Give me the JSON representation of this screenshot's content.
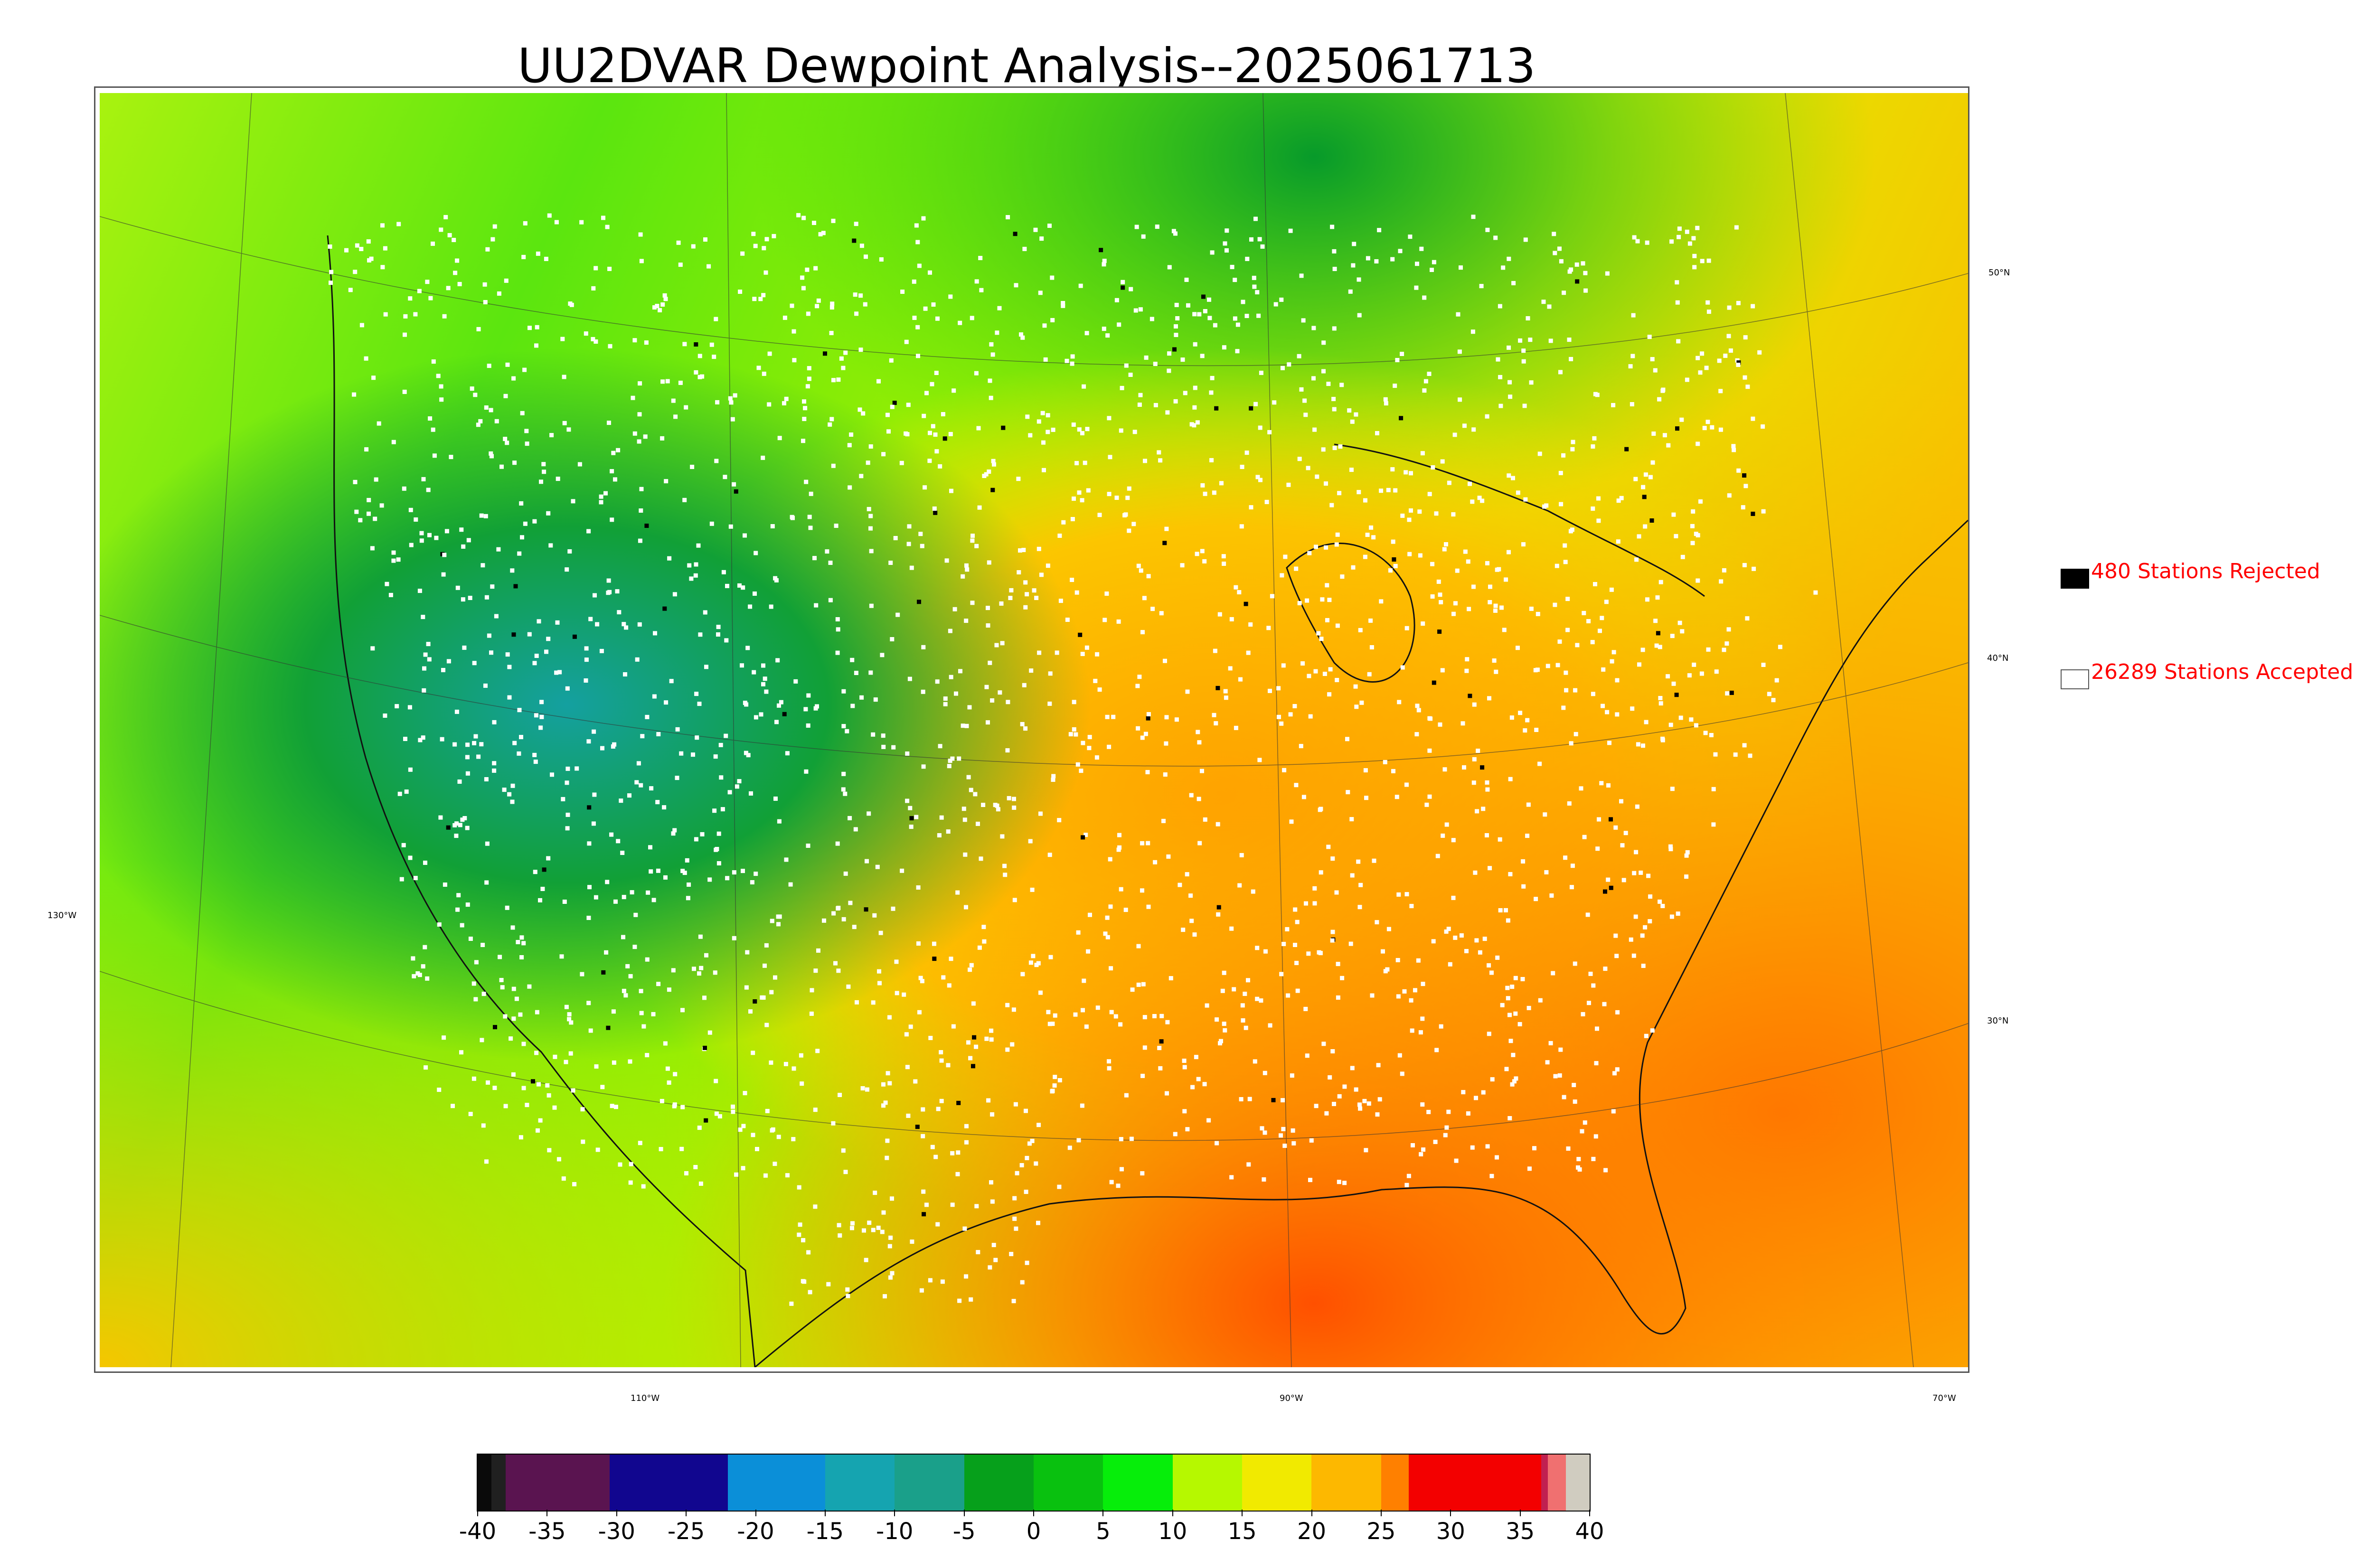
{
  "title": "UU2DVAR Dewpoint Analysis--2025061713",
  "legend": {
    "rejected": {
      "label": "480 Stations Rejected",
      "color": "#000000"
    },
    "accepted": {
      "label": "26289 Stations Accepted",
      "color": "#ffffff"
    }
  },
  "graticule": {
    "lat_labels": [
      "50°N",
      "40°N",
      "30°N"
    ],
    "lon_labels": [
      "130°W",
      "110°W",
      "90°W",
      "70°W"
    ]
  },
  "colorbar": {
    "tick_labels": [
      "-40",
      "-35",
      "-30",
      "-25",
      "-20",
      "-15",
      "-10",
      "-5",
      "0",
      "5",
      "10",
      "15",
      "20",
      "25",
      "30",
      "35",
      "40"
    ],
    "range": [
      -40,
      40
    ],
    "colors": [
      {
        "from": -40,
        "to": -39,
        "color": "#0a0a0a"
      },
      {
        "from": -39,
        "to": -38,
        "color": "#202020"
      },
      {
        "from": -38,
        "to": -30.5,
        "color": "#5a1450"
      },
      {
        "from": -30.5,
        "to": -22,
        "color": "#11068f"
      },
      {
        "from": -22,
        "to": -15,
        "color": "#0b8fd8"
      },
      {
        "from": -15,
        "to": -10,
        "color": "#15a4b0"
      },
      {
        "from": -10,
        "to": -5,
        "color": "#1aa08a"
      },
      {
        "from": -5,
        "to": 0,
        "color": "#06a01b"
      },
      {
        "from": 0,
        "to": 5,
        "color": "#09c10f"
      },
      {
        "from": 5,
        "to": 10,
        "color": "#06ee0a"
      },
      {
        "from": 10,
        "to": 15,
        "color": "#b6f800"
      },
      {
        "from": 15,
        "to": 20,
        "color": "#f1ea00"
      },
      {
        "from": 20,
        "to": 25,
        "color": "#fdb800"
      },
      {
        "from": 25,
        "to": 27,
        "color": "#ff8000"
      },
      {
        "from": 27,
        "to": 36.5,
        "color": "#f30000"
      },
      {
        "from": 36.5,
        "to": 37,
        "color": "#c02050"
      },
      {
        "from": 37,
        "to": 38.3,
        "color": "#f07070"
      },
      {
        "from": 38.3,
        "to": 40,
        "color": "#d0ccc0"
      }
    ]
  }
}
